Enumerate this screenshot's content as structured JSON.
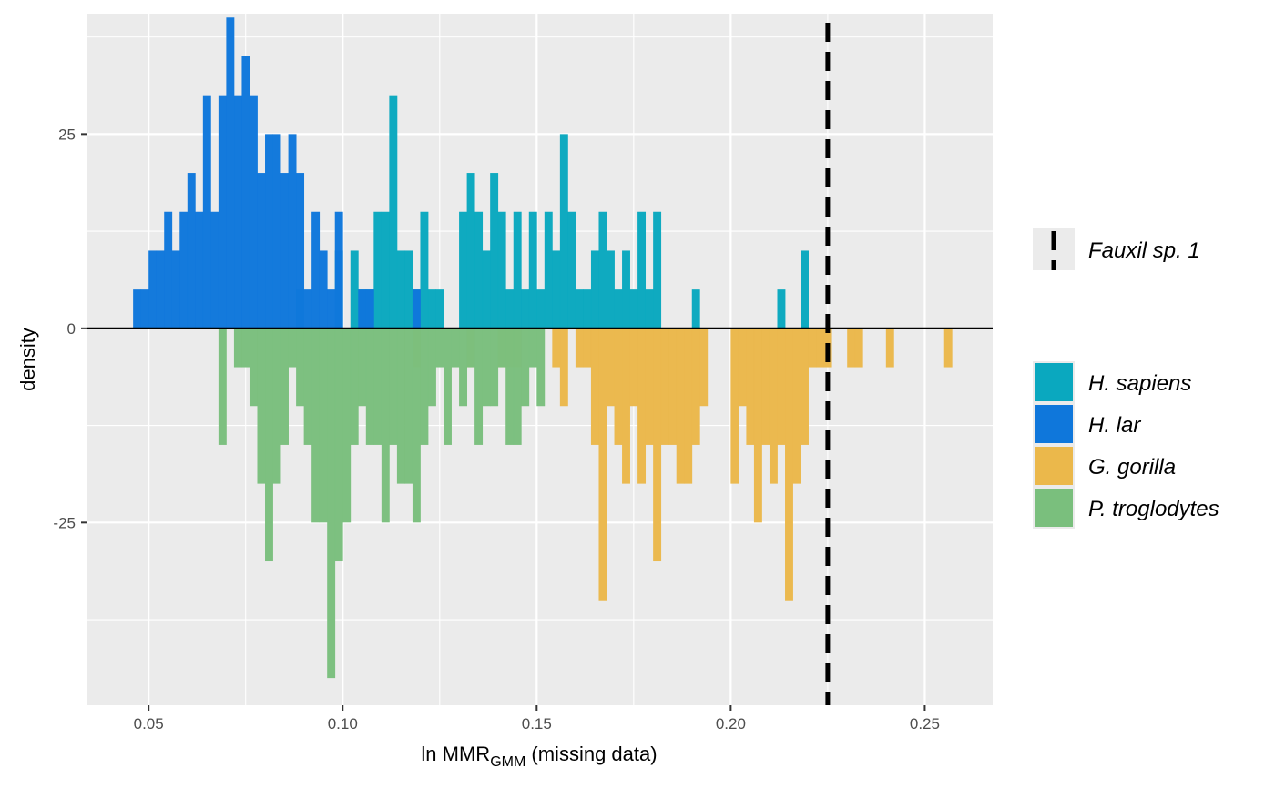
{
  "chart_data": {
    "type": "bar",
    "xlabel": {
      "main": "ln MMR",
      "sub": "GMM",
      "suffix": " (missing data)"
    },
    "ylabel": "density",
    "xlim": [
      0.034,
      0.2675
    ],
    "ylim": [
      -48.5,
      40.5
    ],
    "x_ticks": [
      0.05,
      0.1,
      0.15,
      0.2,
      0.25
    ],
    "x_tick_labels": [
      "0.05",
      "0.10",
      "0.15",
      "0.20",
      "0.25"
    ],
    "y_ticks": [
      -25,
      0,
      25
    ],
    "y_tick_labels": [
      "-25",
      "0",
      "25"
    ],
    "bin_width": 0.002,
    "reference_line": {
      "name": "Fauxil sp. 1",
      "x": 0.225,
      "style": "dashed",
      "color": "#000000"
    },
    "legend": {
      "position": "right"
    },
    "series": [
      {
        "name": "H. sapiens",
        "color": "#0aa8bf",
        "direction": "up",
        "bins": [
          [
            0.089,
            5
          ],
          [
            0.099,
            10
          ],
          [
            0.103,
            10
          ],
          [
            0.105,
            5
          ],
          [
            0.107,
            5
          ],
          [
            0.109,
            15
          ],
          [
            0.111,
            15
          ],
          [
            0.113,
            30
          ],
          [
            0.115,
            10
          ],
          [
            0.117,
            10
          ],
          [
            0.119,
            5
          ],
          [
            0.121,
            15
          ],
          [
            0.123,
            5
          ],
          [
            0.125,
            5
          ],
          [
            0.131,
            15
          ],
          [
            0.133,
            20
          ],
          [
            0.135,
            15
          ],
          [
            0.137,
            10
          ],
          [
            0.139,
            20
          ],
          [
            0.141,
            15
          ],
          [
            0.143,
            5
          ],
          [
            0.145,
            15
          ],
          [
            0.147,
            5
          ],
          [
            0.149,
            15
          ],
          [
            0.151,
            5
          ],
          [
            0.153,
            15
          ],
          [
            0.155,
            10
          ],
          [
            0.157,
            25
          ],
          [
            0.159,
            15
          ],
          [
            0.161,
            5
          ],
          [
            0.163,
            5
          ],
          [
            0.165,
            10
          ],
          [
            0.167,
            15
          ],
          [
            0.169,
            10
          ],
          [
            0.171,
            5
          ],
          [
            0.173,
            10
          ],
          [
            0.175,
            5
          ],
          [
            0.177,
            15
          ],
          [
            0.179,
            5
          ],
          [
            0.181,
            15
          ],
          [
            0.191,
            5
          ],
          [
            0.213,
            5
          ],
          [
            0.219,
            10
          ]
        ]
      },
      {
        "name": "H. lar",
        "color": "#0f77db",
        "direction": "up",
        "bins": [
          [
            0.047,
            5
          ],
          [
            0.049,
            5
          ],
          [
            0.051,
            10
          ],
          [
            0.053,
            10
          ],
          [
            0.055,
            15
          ],
          [
            0.057,
            10
          ],
          [
            0.059,
            15
          ],
          [
            0.061,
            20
          ],
          [
            0.063,
            15
          ],
          [
            0.065,
            30
          ],
          [
            0.067,
            15
          ],
          [
            0.069,
            30
          ],
          [
            0.071,
            40
          ],
          [
            0.073,
            30
          ],
          [
            0.075,
            35
          ],
          [
            0.077,
            30
          ],
          [
            0.079,
            20
          ],
          [
            0.081,
            25
          ],
          [
            0.083,
            25
          ],
          [
            0.085,
            20
          ],
          [
            0.087,
            25
          ],
          [
            0.089,
            20
          ],
          [
            0.091,
            5
          ],
          [
            0.093,
            15
          ],
          [
            0.095,
            10
          ],
          [
            0.097,
            5
          ],
          [
            0.099,
            15
          ],
          [
            0.105,
            5
          ],
          [
            0.107,
            5
          ],
          [
            0.119,
            5
          ]
        ]
      },
      {
        "name": "G. gorilla",
        "color": "#ebb84b",
        "direction": "down",
        "bins": [
          [
            0.119,
            5
          ],
          [
            0.133,
            5
          ],
          [
            0.141,
            5
          ],
          [
            0.143,
            5
          ],
          [
            0.145,
            5
          ],
          [
            0.155,
            5
          ],
          [
            0.157,
            10
          ],
          [
            0.161,
            5
          ],
          [
            0.163,
            5
          ],
          [
            0.165,
            15
          ],
          [
            0.167,
            35
          ],
          [
            0.169,
            10
          ],
          [
            0.171,
            15
          ],
          [
            0.173,
            20
          ],
          [
            0.175,
            10
          ],
          [
            0.177,
            20
          ],
          [
            0.179,
            15
          ],
          [
            0.181,
            30
          ],
          [
            0.183,
            15
          ],
          [
            0.185,
            15
          ],
          [
            0.187,
            20
          ],
          [
            0.189,
            20
          ],
          [
            0.191,
            15
          ],
          [
            0.193,
            10
          ],
          [
            0.201,
            20
          ],
          [
            0.203,
            10
          ],
          [
            0.205,
            15
          ],
          [
            0.207,
            25
          ],
          [
            0.209,
            15
          ],
          [
            0.211,
            20
          ],
          [
            0.213,
            15
          ],
          [
            0.215,
            35
          ],
          [
            0.217,
            20
          ],
          [
            0.219,
            15
          ],
          [
            0.221,
            5
          ],
          [
            0.223,
            5
          ],
          [
            0.225,
            5
          ],
          [
            0.231,
            5
          ],
          [
            0.233,
            5
          ],
          [
            0.241,
            5
          ],
          [
            0.256,
            5
          ]
        ]
      },
      {
        "name": "P. troglodytes",
        "color": "#7abf7d",
        "direction": "down",
        "bins": [
          [
            0.069,
            15
          ],
          [
            0.073,
            5
          ],
          [
            0.075,
            5
          ],
          [
            0.077,
            10
          ],
          [
            0.079,
            20
          ],
          [
            0.081,
            30
          ],
          [
            0.083,
            20
          ],
          [
            0.085,
            15
          ],
          [
            0.087,
            5
          ],
          [
            0.089,
            10
          ],
          [
            0.091,
            15
          ],
          [
            0.093,
            25
          ],
          [
            0.095,
            25
          ],
          [
            0.097,
            45
          ],
          [
            0.099,
            30
          ],
          [
            0.101,
            25
          ],
          [
            0.103,
            15
          ],
          [
            0.105,
            10
          ],
          [
            0.107,
            15
          ],
          [
            0.109,
            15
          ],
          [
            0.111,
            25
          ],
          [
            0.113,
            15
          ],
          [
            0.115,
            20
          ],
          [
            0.117,
            20
          ],
          [
            0.119,
            25
          ],
          [
            0.121,
            15
          ],
          [
            0.123,
            10
          ],
          [
            0.125,
            5
          ],
          [
            0.127,
            15
          ],
          [
            0.129,
            5
          ],
          [
            0.131,
            10
          ],
          [
            0.133,
            5
          ],
          [
            0.135,
            15
          ],
          [
            0.137,
            10
          ],
          [
            0.139,
            10
          ],
          [
            0.141,
            5
          ],
          [
            0.143,
            15
          ],
          [
            0.145,
            15
          ],
          [
            0.147,
            10
          ],
          [
            0.149,
            5
          ],
          [
            0.151,
            10
          ]
        ]
      }
    ]
  }
}
